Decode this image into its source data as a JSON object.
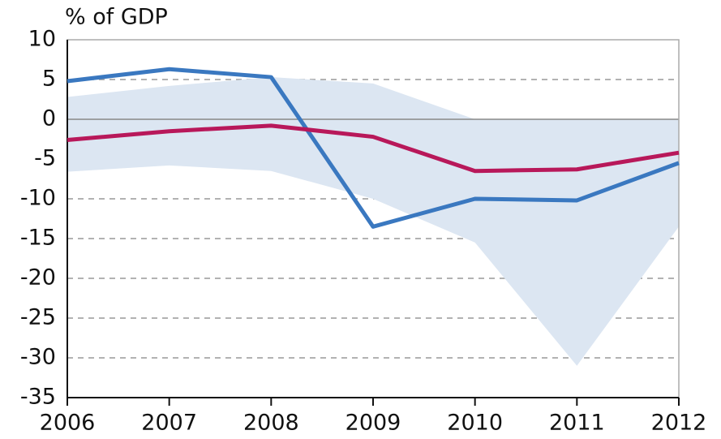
{
  "chart_data": {
    "type": "line",
    "y_label": "% of GDP",
    "categories": [
      "2006",
      "2007",
      "2008",
      "2009",
      "2010",
      "2011",
      "2012"
    ],
    "ylim": [
      -35,
      10
    ],
    "yticks": [
      10,
      5,
      0,
      -5,
      -10,
      -15,
      -20,
      -25,
      -30,
      -35
    ],
    "grid": true,
    "band": {
      "color": "#dce6f2",
      "upper": [
        2.8,
        4.2,
        5.3,
        4.5,
        0,
        0,
        0
      ],
      "lower": [
        -6.6,
        -5.8,
        -6.5,
        -10,
        -15.5,
        -31,
        -13.5
      ]
    },
    "series": [
      {
        "color": "#3a78c0",
        "values": [
          4.8,
          6.3,
          5.3,
          -13.5,
          -10,
          -10.2,
          -5.5
        ]
      },
      {
        "color": "#b8185a",
        "values": [
          -2.6,
          -1.5,
          -0.8,
          -2.2,
          -6.5,
          -6.3,
          -4.2
        ]
      }
    ]
  }
}
